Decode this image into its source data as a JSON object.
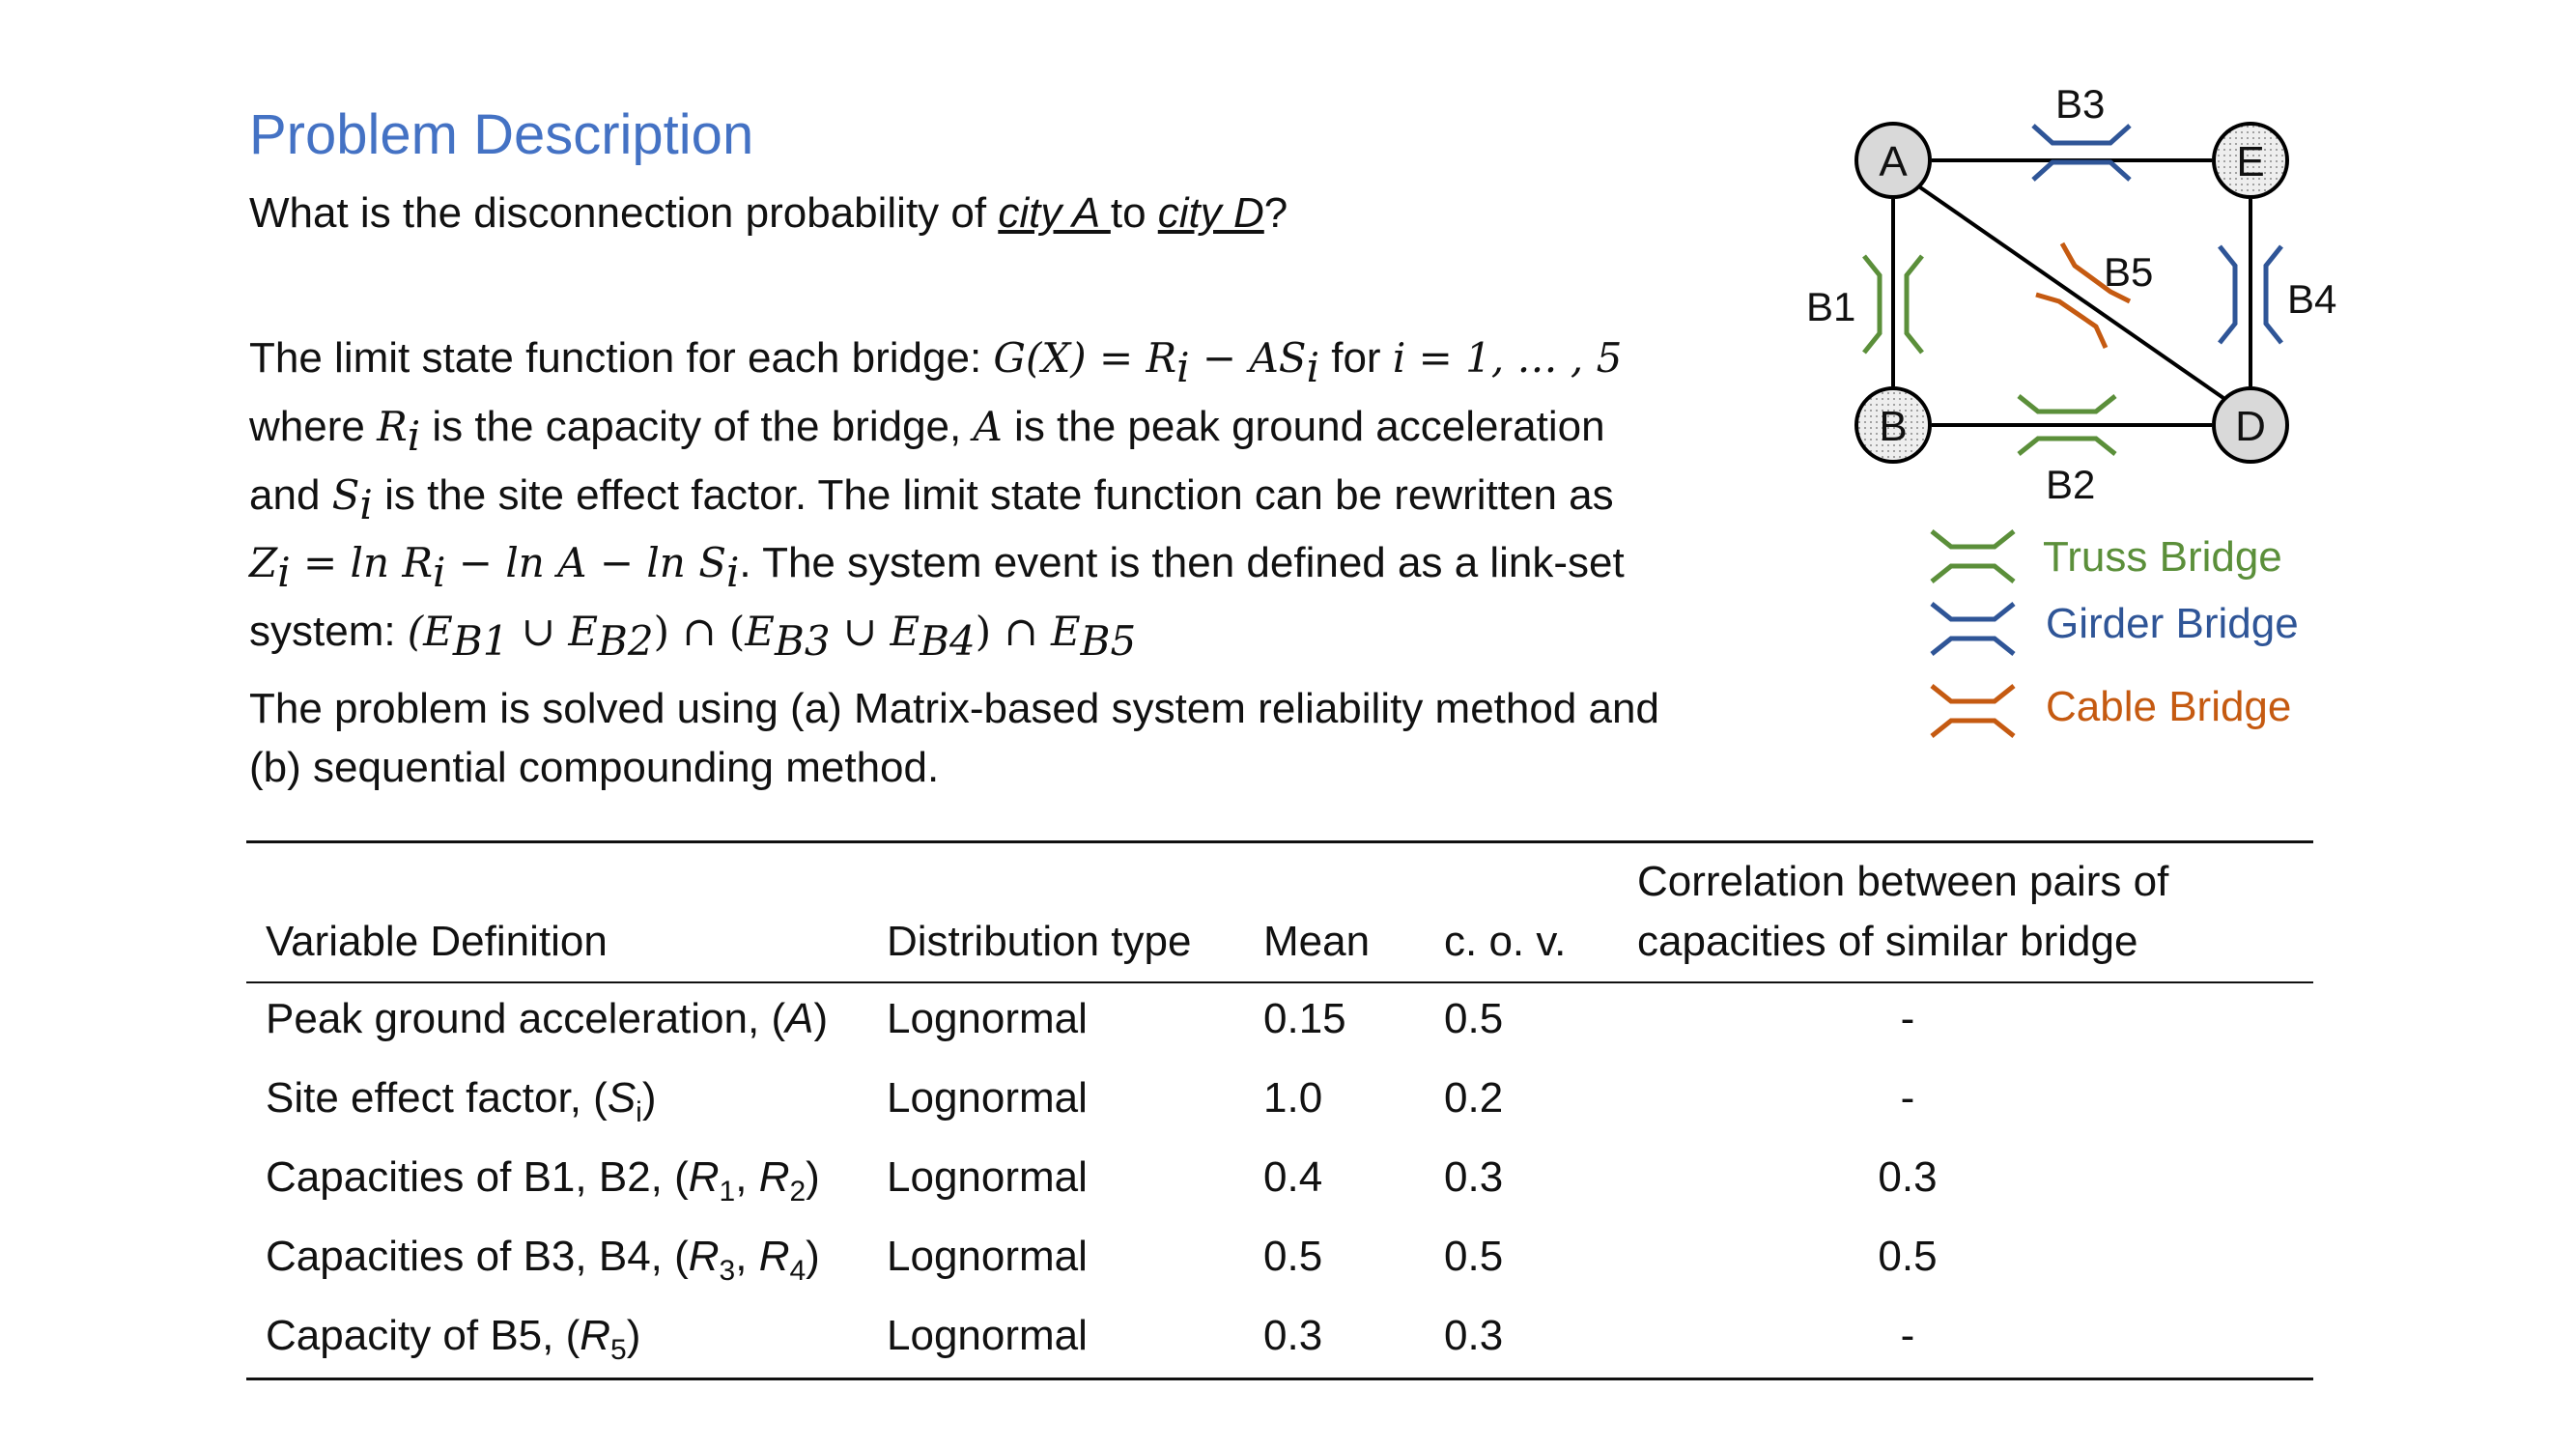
{
  "title": "Problem Description",
  "question": {
    "prefix": "What is the disconnection probability of ",
    "city_a": "city A ",
    "to": "to ",
    "city_d": "city D",
    "suffix": "?"
  },
  "limit_state": {
    "line1_text": "The limit state function for each bridge: ",
    "line1_eq": "G(X) = R",
    "line1_eq2": " − AS",
    "line1_for": " for ",
    "line1_range": "i = 1, … , 5",
    "line2_where": "where ",
    "line2_rest": " is the capacity of the bridge, ",
    "line2_A": "A",
    "line2_rest2": " is the peak ground acceleration",
    "line3_and": "and ",
    "line3_rest": " is the site effect factor.  The limit state function can be rewritten as",
    "line4_eq": "Z",
    "line4_eq_rest": " = ln R",
    "line4_eq_rest2": " − ln A − ln S",
    "line4_tail": ". The system event is then defined as a link-set",
    "line5_text": "system: ",
    "line5_eq": "(E",
    "sub_i": "i",
    "sub_b1": "B1",
    "sub_b2": "B2",
    "sub_b3": "B3",
    "sub_b4": "B4",
    "sub_b5": "B5"
  },
  "method": {
    "line1": "The problem is solved using (a) Matrix-based system reliability method and",
    "line2": "(b) sequential compounding method."
  },
  "diagram": {
    "nodes": [
      "A",
      "E",
      "B",
      "D"
    ],
    "bridges": [
      "B1",
      "B2",
      "B3",
      "B4",
      "B5"
    ],
    "legend": [
      "Truss Bridge",
      "Girder Bridge",
      "Cable Bridge"
    ],
    "colors": {
      "truss": "#5b8f3a",
      "girder": "#2f5597",
      "cable": "#c55a11"
    }
  },
  "table": {
    "headers": {
      "var": "Variable Definition",
      "dist": "Distribution type",
      "mean": "Mean",
      "cov": "c. o. v.",
      "corr_line1": "Correlation between pairs of",
      "corr_line2": "capacities of similar bridge"
    },
    "rows": [
      {
        "var_text": "Peak ground acceleration, (",
        "var_sym": "A",
        "var_sub1": "",
        "var_sep": "",
        "var_sym2": "",
        "var_sub2": "",
        "var_end": ")",
        "dist": "Lognormal",
        "mean": "0.15",
        "cov": "0.5",
        "corr": "-"
      },
      {
        "var_text": "Site effect factor, (",
        "var_sym": "S",
        "var_sub1": "i",
        "var_sep": "",
        "var_sym2": "",
        "var_sub2": "",
        "var_end": ")",
        "dist": "Lognormal",
        "mean": "1.0",
        "cov": "0.2",
        "corr": "-"
      },
      {
        "var_text": "Capacities of B1, B2, (",
        "var_sym": "R",
        "var_sub1": "1",
        "var_sep": ", ",
        "var_sym2": "R",
        "var_sub2": "2",
        "var_end": ")",
        "dist": "Lognormal",
        "mean": "0.4",
        "cov": "0.3",
        "corr": "0.3"
      },
      {
        "var_text": "Capacities of B3, B4, (",
        "var_sym": "R",
        "var_sub1": "3",
        "var_sep": ", ",
        "var_sym2": "R",
        "var_sub2": "4",
        "var_end": ")",
        "dist": "Lognormal",
        "mean": "0.5",
        "cov": "0.5",
        "corr": "0.5"
      },
      {
        "var_text": "Capacity of B5, (",
        "var_sym": "R",
        "var_sub1": "5",
        "var_sep": "",
        "var_sym2": "",
        "var_sub2": "",
        "var_end": ")",
        "dist": "Lognormal",
        "mean": "0.3",
        "cov": "0.3",
        "corr": "-"
      }
    ]
  }
}
